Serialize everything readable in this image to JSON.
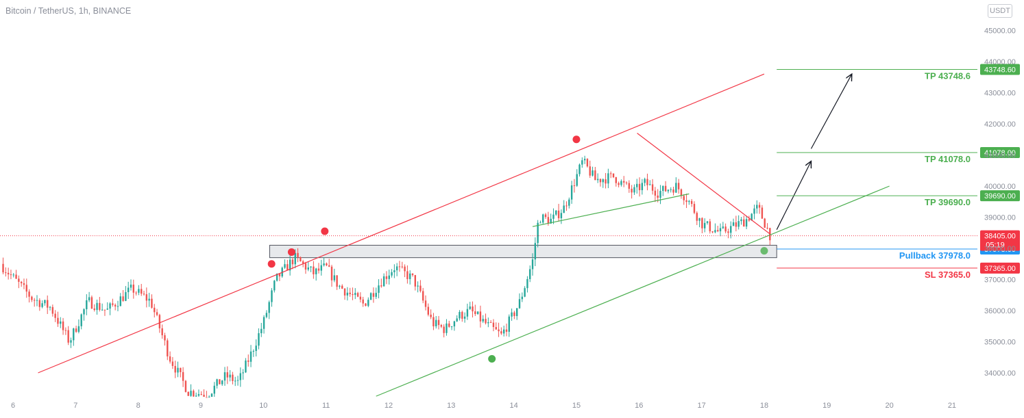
{
  "header": {
    "symbol_title": "Bitcoin / TetherUS, 1h, BINANCE",
    "currency_button": "USDT"
  },
  "colors": {
    "up": "#26a69a",
    "down": "#ef5350",
    "channel_red": "#f23645",
    "trend_green": "#4caf50",
    "tp_green": "#4caf50",
    "pullback_blue": "#2196f3",
    "sl_red": "#f23645",
    "zone_fill": "#dfe1e6",
    "axis_text": "#8a8e99"
  },
  "chart_data": {
    "type": "candlestick",
    "title": "Bitcoin / TetherUS, 1h, BINANCE",
    "xlabel": "",
    "ylabel": "",
    "x_ticks": [
      "6",
      "7",
      "8",
      "9",
      "10",
      "11",
      "12",
      "13",
      "14",
      "15",
      "16",
      "17",
      "18",
      "19",
      "20",
      "21"
    ],
    "y_ticks": [
      34000,
      35000,
      36000,
      37000,
      38000,
      39000,
      40000,
      41000,
      42000,
      43000,
      44000,
      45000
    ],
    "y_tick_labels": [
      "34000.00",
      "35000.00",
      "36000.00",
      "37000.00",
      "38000.00",
      "39000.00",
      "40000.00",
      "41000.00",
      "42000.00",
      "43000.00",
      "44000.00",
      "45000.00"
    ],
    "ylim": [
      33250,
      45950
    ],
    "xlim": [
      5.8,
      21.3
    ],
    "grid": false,
    "price_path": [
      [
        5.8,
        37500
      ],
      [
        6.3,
        36400
      ],
      [
        6.6,
        36100
      ],
      [
        6.9,
        35000
      ],
      [
        7.2,
        36300
      ],
      [
        7.5,
        36000
      ],
      [
        7.9,
        36700
      ],
      [
        8.2,
        36300
      ],
      [
        8.5,
        34500
      ],
      [
        8.8,
        33400
      ],
      [
        9.1,
        33300
      ],
      [
        9.4,
        33900
      ],
      [
        9.6,
        33700
      ],
      [
        9.8,
        34600
      ],
      [
        10.0,
        35600
      ],
      [
        10.2,
        37000
      ],
      [
        10.5,
        37700
      ],
      [
        10.8,
        37200
      ],
      [
        11.0,
        37400
      ],
      [
        11.2,
        36800
      ],
      [
        11.6,
        36200
      ],
      [
        11.9,
        37000
      ],
      [
        12.1,
        37400
      ],
      [
        12.4,
        37000
      ],
      [
        12.7,
        35600
      ],
      [
        12.9,
        35400
      ],
      [
        13.1,
        35800
      ],
      [
        13.3,
        36000
      ],
      [
        13.6,
        35500
      ],
      [
        13.8,
        35200
      ],
      [
        14.0,
        35900
      ],
      [
        14.1,
        36300
      ],
      [
        14.3,
        37600
      ],
      [
        14.4,
        39000
      ],
      [
        14.6,
        38900
      ],
      [
        14.8,
        39300
      ],
      [
        15.0,
        40300
      ],
      [
        15.1,
        40800
      ],
      [
        15.3,
        40200
      ],
      [
        15.6,
        40300
      ],
      [
        15.9,
        39800
      ],
      [
        16.1,
        40100
      ],
      [
        16.3,
        39800
      ],
      [
        16.6,
        40000
      ],
      [
        16.8,
        39500
      ],
      [
        17.0,
        38800
      ],
      [
        17.3,
        38500
      ],
      [
        17.5,
        38700
      ],
      [
        17.7,
        38900
      ],
      [
        17.9,
        39300
      ],
      [
        18.1,
        38400
      ]
    ],
    "drawings": {
      "upper_channel_line": {
        "from": [
          6.4,
          34000
        ],
        "to": [
          18.0,
          43600
        ]
      },
      "lower_channel_line": {
        "from": [
          11.8,
          33250
        ],
        "to": [
          20.0,
          40000
        ]
      },
      "inner_support_line": {
        "from": [
          14.3,
          38700
        ],
        "to": [
          16.8,
          39750
        ]
      },
      "descending_resistance": {
        "from": [
          15.97,
          41700
        ],
        "to": [
          18.1,
          38450
        ]
      },
      "support_zone": {
        "x_from": 10.1,
        "x_to": 18.2,
        "y_from": 37700,
        "y_to": 38100
      },
      "projection_arrows": [
        {
          "from": [
            18.2,
            38600
          ],
          "to": [
            18.75,
            40800
          ]
        },
        {
          "from": [
            18.75,
            41200
          ],
          "to": [
            19.4,
            43600
          ]
        }
      ],
      "pivot_markers": [
        {
          "x": 10.13,
          "y": 37500,
          "color": "red"
        },
        {
          "x": 10.45,
          "y": 37880,
          "color": "red"
        },
        {
          "x": 10.98,
          "y": 38550,
          "color": "red"
        },
        {
          "x": 15.0,
          "y": 41500,
          "color": "red"
        },
        {
          "x": 13.65,
          "y": 34450,
          "color": "green"
        },
        {
          "x": 18.0,
          "y": 37920,
          "color": "green"
        }
      ],
      "current_price_line": 38405.0
    },
    "levels": [
      {
        "name": "TP",
        "label": "TP 43748.6",
        "value": 43748.6,
        "axis_label": "43748.60",
        "color": "green",
        "x_from": 18.2
      },
      {
        "name": "TP",
        "label": "TP 41078.0",
        "value": 41078.0,
        "axis_label": "41078.00",
        "color": "green",
        "x_from": 18.2
      },
      {
        "name": "TP",
        "label": "TP 39690.0",
        "value": 39690.0,
        "axis_label": "39690.00",
        "color": "green",
        "x_from": 18.2
      },
      {
        "name": "Pullback",
        "label": "Pullback 37978.0",
        "value": 37978.0,
        "axis_label": "37978.00",
        "color": "blue",
        "x_from": 18.2
      },
      {
        "name": "SL",
        "label": "SL 37365.0",
        "value": 37365.0,
        "axis_label": "37365.00",
        "color": "red",
        "x_from": 18.2
      }
    ],
    "current_price": {
      "value": 38405.0,
      "label": "38405.00",
      "countdown": "05:19"
    }
  }
}
